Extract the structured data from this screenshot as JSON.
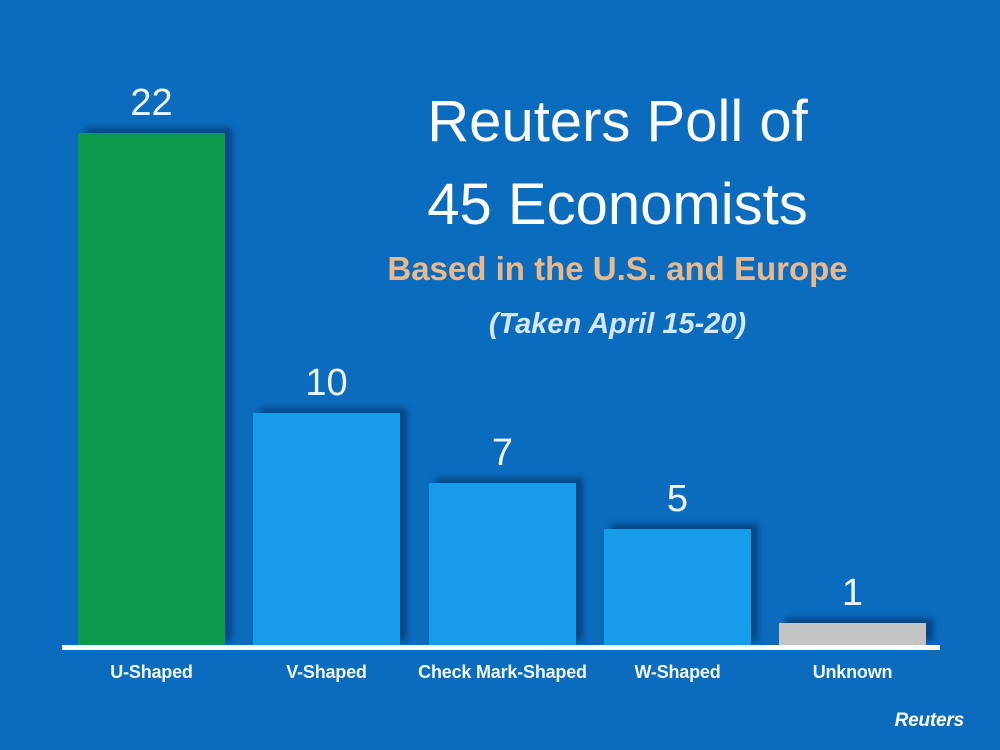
{
  "chart_data": {
    "type": "bar",
    "categories": [
      "U-Shaped",
      "V-Shaped",
      "Check Mark-Shaped",
      "W-Shaped",
      "Unknown"
    ],
    "values": [
      22,
      10,
      7,
      5,
      1
    ],
    "title_lines": [
      "Reuters Poll of",
      "45 Economists"
    ],
    "subtitle": "Based in the U.S. and Europe",
    "note": "(Taken April 15-20)",
    "source": "Reuters",
    "bar_colors": [
      "#0d9a4c",
      "#179ce9",
      "#179ce9",
      "#179ce9",
      "#c4c4c4"
    ],
    "background_color": "#0b6cbe",
    "value_label_color": "#eef6fc",
    "category_label_color": "#eef6fc",
    "subtitle_color": "#e9b98b",
    "note_color": "#d5e7f6",
    "axis": {
      "grid": false,
      "baseline_color": "#fbfbfb"
    },
    "legend": "none",
    "xlabel": "",
    "ylabel": ""
  }
}
